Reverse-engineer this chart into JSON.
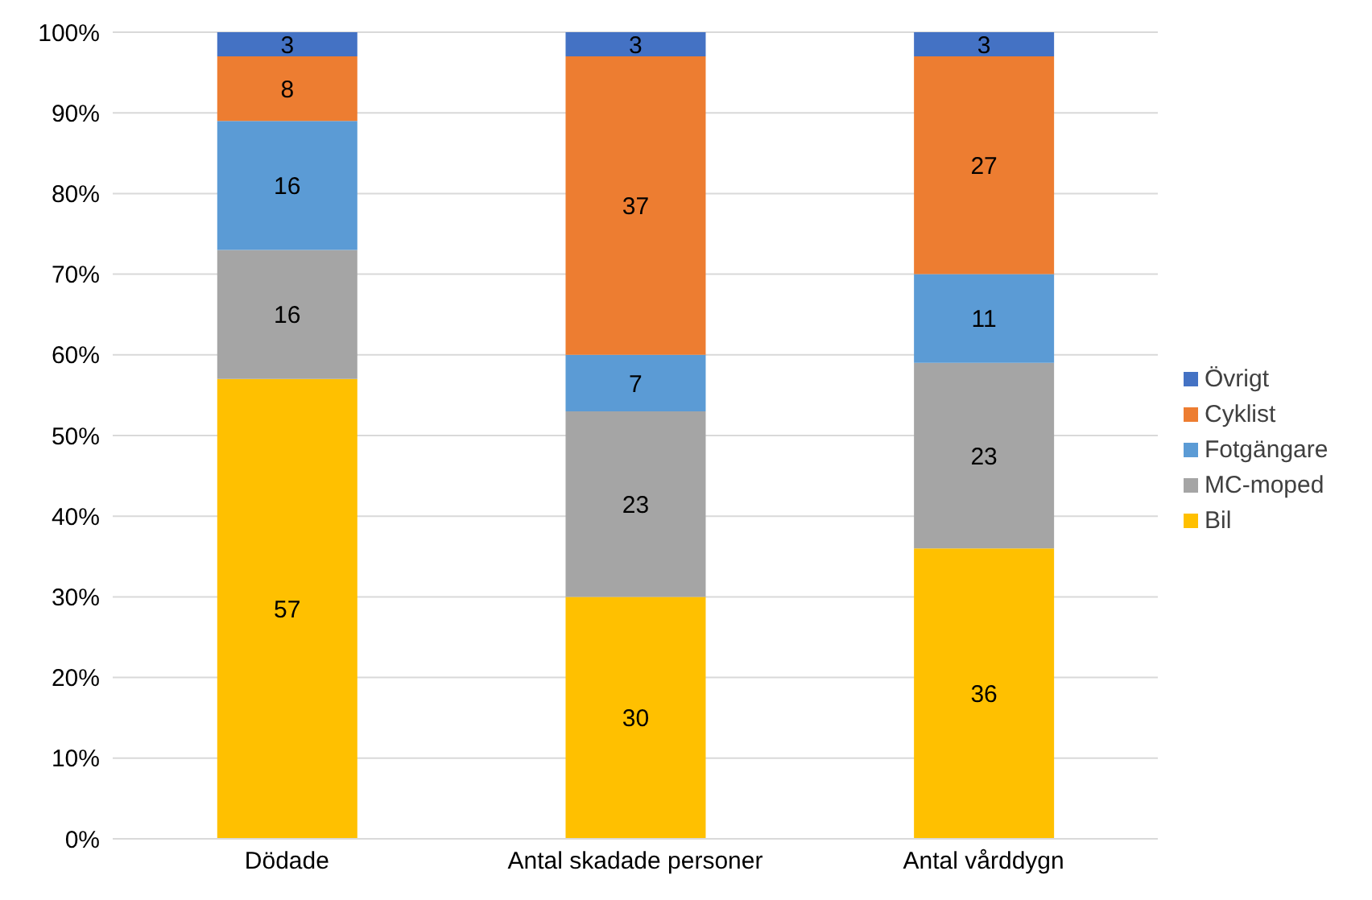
{
  "chart_data": {
    "type": "bar",
    "stacked": true,
    "categories": [
      "Dödade",
      "Antal skadade personer",
      "Antal vårddygn"
    ],
    "series": [
      {
        "name": "Bil",
        "color": "#ffc000",
        "values": [
          57,
          30,
          36
        ]
      },
      {
        "name": "MC-moped",
        "color": "#a5a5a5",
        "values": [
          16,
          23,
          23
        ]
      },
      {
        "name": "Fotgängare",
        "color": "#5b9bd5",
        "values": [
          16,
          7,
          11
        ]
      },
      {
        "name": "Cyklist",
        "color": "#ed7d31",
        "values": [
          8,
          37,
          27
        ]
      },
      {
        "name": "Övrigt",
        "color": "#4472c4",
        "values": [
          3,
          3,
          3
        ]
      }
    ],
    "ylim": [
      0,
      100
    ],
    "yticks": [
      {
        "value": 0,
        "label": "0%"
      },
      {
        "value": 10,
        "label": "10%"
      },
      {
        "value": 20,
        "label": "20%"
      },
      {
        "value": 30,
        "label": "30%"
      },
      {
        "value": 40,
        "label": "40%"
      },
      {
        "value": 50,
        "label": "50%"
      },
      {
        "value": 60,
        "label": "60%"
      },
      {
        "value": 70,
        "label": "70%"
      },
      {
        "value": 80,
        "label": "80%"
      },
      {
        "value": 90,
        "label": "90%"
      },
      {
        "value": 100,
        "label": "100%"
      }
    ],
    "grid": "y",
    "legend": "right",
    "data_labels": true
  }
}
